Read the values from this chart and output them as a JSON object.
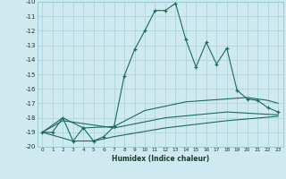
{
  "xlabel": "Humidex (Indice chaleur)",
  "background_color": "#ceeaf0",
  "grid_color": "#aed4dc",
  "line_color": "#1a6b5a",
  "xlim": [
    -0.5,
    23.5
  ],
  "ylim": [
    -20,
    -10
  ],
  "yticks": [
    -20,
    -19,
    -18,
    -17,
    -16,
    -15,
    -14,
    -13,
    -12,
    -11,
    -10
  ],
  "xticks": [
    0,
    1,
    2,
    3,
    4,
    5,
    6,
    7,
    8,
    9,
    10,
    11,
    12,
    13,
    14,
    15,
    16,
    17,
    18,
    19,
    20,
    21,
    22,
    23
  ],
  "series_main": [
    [
      0,
      -19
    ],
    [
      1,
      -19
    ],
    [
      2,
      -18
    ],
    [
      3,
      -19.6
    ],
    [
      4,
      -18.7
    ],
    [
      5,
      -19.6
    ],
    [
      6,
      -19.3
    ],
    [
      7,
      -18.6
    ],
    [
      8,
      -15.1
    ],
    [
      9,
      -13.3
    ],
    [
      10,
      -12.0
    ],
    [
      11,
      -10.6
    ],
    [
      12,
      -10.6
    ],
    [
      13,
      -10.1
    ],
    [
      14,
      -12.6
    ],
    [
      15,
      -14.5
    ],
    [
      16,
      -12.8
    ],
    [
      17,
      -14.3
    ],
    [
      18,
      -13.2
    ],
    [
      19,
      -16.1
    ],
    [
      20,
      -16.7
    ],
    [
      21,
      -16.8
    ],
    [
      22,
      -17.3
    ],
    [
      23,
      -17.6
    ]
  ],
  "series_upper": [
    [
      0,
      -19.0
    ],
    [
      2,
      -18.0
    ],
    [
      4,
      -18.7
    ],
    [
      7,
      -18.6
    ],
    [
      10,
      -17.5
    ],
    [
      14,
      -16.9
    ],
    [
      18,
      -16.7
    ],
    [
      20,
      -16.6
    ],
    [
      22,
      -16.8
    ],
    [
      23,
      -17.0
    ]
  ],
  "series_mid": [
    [
      0,
      -19.0
    ],
    [
      2,
      -18.2
    ],
    [
      7,
      -18.7
    ],
    [
      12,
      -18.0
    ],
    [
      18,
      -17.6
    ],
    [
      23,
      -17.8
    ]
  ],
  "series_lower": [
    [
      0,
      -19.0
    ],
    [
      3,
      -19.6
    ],
    [
      5,
      -19.6
    ],
    [
      7,
      -19.3
    ],
    [
      12,
      -18.7
    ],
    [
      18,
      -18.2
    ],
    [
      23,
      -17.9
    ]
  ]
}
